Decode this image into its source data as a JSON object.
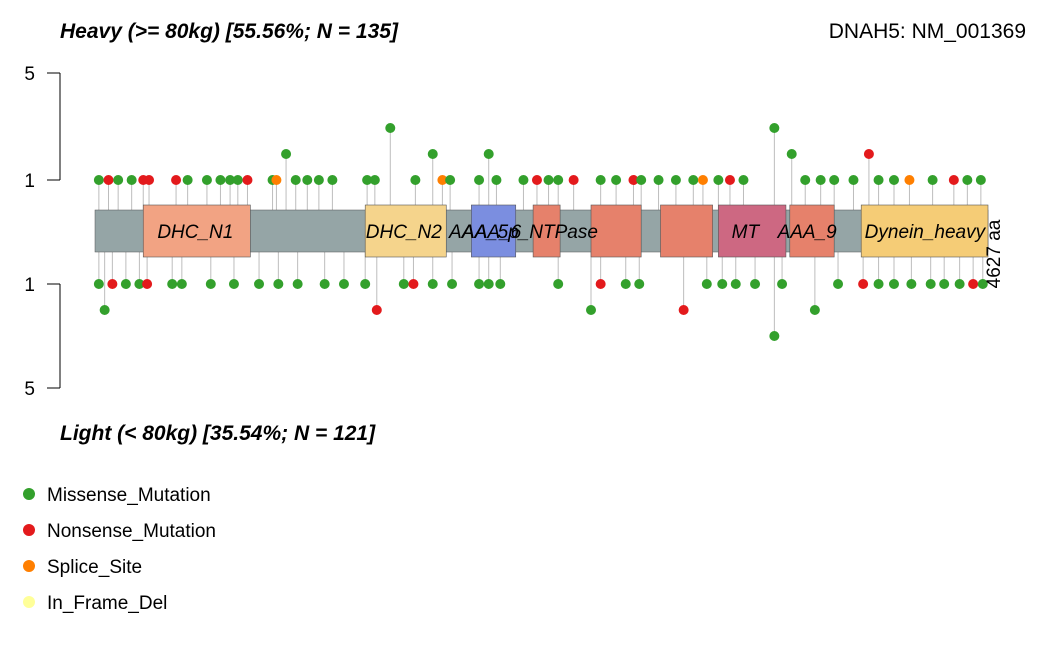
{
  "chart_data": {
    "type": "lollipop",
    "title_top": "Heavy (>= 80kg) [55.56%; N = 135]",
    "title_bottom": "Light (< 80kg) [35.54%; N = 121]",
    "gene_label": "DNAH5: NM_001369",
    "protein_length_label": "4627 aa",
    "protein_length": 4627,
    "y_ticks_top": [
      "5",
      "1"
    ],
    "y_ticks_bottom": [
      "1",
      "5"
    ],
    "colors": {
      "missense": "#33a02c",
      "nonsense": "#e31a1c",
      "splice": "#ff7f00",
      "in_frame_del": "#ffff99",
      "backbone": "#95a5a6",
      "stem": "#bdbdbd"
    },
    "domains": [
      {
        "name": "DHC_N1",
        "start": 250,
        "end": 805,
        "color": "#f2a383"
      },
      {
        "name": "DHC_N2",
        "start": 1400,
        "end": 1820,
        "color": "#f5d48c"
      },
      {
        "name": "AAA_6",
        "start": 1950,
        "end": 2180,
        "color": "#7b8ee0"
      },
      {
        "name": "AAA_5p_NTPase",
        "start": 2270,
        "end": 2410,
        "color": "#e6816b"
      },
      {
        "name": "",
        "start": 2570,
        "end": 2830,
        "color": "#e6816b"
      },
      {
        "name": "",
        "start": 2930,
        "end": 3200,
        "color": "#e6816b"
      },
      {
        "name": "MT",
        "start": 3230,
        "end": 3580,
        "color": "#cd6882"
      },
      {
        "name": "AAA_9",
        "start": 3600,
        "end": 3830,
        "color": "#e6816b"
      },
      {
        "name": "Dynein_heavy",
        "start": 3970,
        "end": 4627,
        "color": "#f5cc76"
      }
    ],
    "domain_labels": [
      {
        "text": "DHC_N1",
        "pos": 520
      },
      {
        "text": "DHC_N2",
        "pos": 1600
      },
      {
        "text": "AAA_6",
        "pos": 2055
      },
      {
        "text": "AAA_5p_NTPase",
        "pos": 2220
      },
      {
        "text": "MT",
        "pos": 3370
      },
      {
        "text": "AAA_9",
        "pos": 3690
      },
      {
        "text": "Dynein_heavy",
        "pos": 4300
      }
    ],
    "top_mutations": [
      {
        "pos": 20,
        "count": 1,
        "type": "missense"
      },
      {
        "pos": 70,
        "count": 1,
        "type": "nonsense"
      },
      {
        "pos": 120,
        "count": 1,
        "type": "missense"
      },
      {
        "pos": 190,
        "count": 1,
        "type": "missense"
      },
      {
        "pos": 250,
        "count": 1,
        "type": "nonsense"
      },
      {
        "pos": 280,
        "count": 1,
        "type": "nonsense"
      },
      {
        "pos": 420,
        "count": 1,
        "type": "nonsense"
      },
      {
        "pos": 480,
        "count": 1,
        "type": "missense"
      },
      {
        "pos": 580,
        "count": 1,
        "type": "missense"
      },
      {
        "pos": 650,
        "count": 1,
        "type": "missense"
      },
      {
        "pos": 700,
        "count": 1,
        "type": "missense"
      },
      {
        "pos": 740,
        "count": 1,
        "type": "missense"
      },
      {
        "pos": 790,
        "count": 1,
        "type": "nonsense"
      },
      {
        "pos": 920,
        "count": 1,
        "type": "missense"
      },
      {
        "pos": 940,
        "count": 1,
        "type": "splice"
      },
      {
        "pos": 990,
        "count": 2,
        "type": "missense"
      },
      {
        "pos": 1040,
        "count": 1,
        "type": "missense"
      },
      {
        "pos": 1100,
        "count": 1,
        "type": "missense"
      },
      {
        "pos": 1160,
        "count": 1,
        "type": "missense"
      },
      {
        "pos": 1230,
        "count": 1,
        "type": "missense"
      },
      {
        "pos": 1410,
        "count": 1,
        "type": "missense"
      },
      {
        "pos": 1450,
        "count": 1,
        "type": "missense"
      },
      {
        "pos": 1530,
        "count": 3,
        "type": "missense"
      },
      {
        "pos": 1660,
        "count": 1,
        "type": "missense"
      },
      {
        "pos": 1750,
        "count": 2,
        "type": "missense"
      },
      {
        "pos": 1800,
        "count": 1,
        "type": "splice"
      },
      {
        "pos": 1840,
        "count": 1,
        "type": "missense"
      },
      {
        "pos": 1990,
        "count": 1,
        "type": "missense"
      },
      {
        "pos": 2040,
        "count": 2,
        "type": "missense"
      },
      {
        "pos": 2080,
        "count": 1,
        "type": "missense"
      },
      {
        "pos": 2220,
        "count": 1,
        "type": "missense"
      },
      {
        "pos": 2290,
        "count": 1,
        "type": "nonsense"
      },
      {
        "pos": 2350,
        "count": 1,
        "type": "missense"
      },
      {
        "pos": 2400,
        "count": 1,
        "type": "missense"
      },
      {
        "pos": 2480,
        "count": 1,
        "type": "nonsense"
      },
      {
        "pos": 2620,
        "count": 1,
        "type": "missense"
      },
      {
        "pos": 2700,
        "count": 1,
        "type": "missense"
      },
      {
        "pos": 2790,
        "count": 1,
        "type": "nonsense"
      },
      {
        "pos": 2830,
        "count": 1,
        "type": "missense"
      },
      {
        "pos": 2920,
        "count": 1,
        "type": "missense"
      },
      {
        "pos": 3010,
        "count": 1,
        "type": "missense"
      },
      {
        "pos": 3100,
        "count": 1,
        "type": "missense"
      },
      {
        "pos": 3150,
        "count": 1,
        "type": "splice"
      },
      {
        "pos": 3230,
        "count": 1,
        "type": "missense"
      },
      {
        "pos": 3290,
        "count": 1,
        "type": "nonsense"
      },
      {
        "pos": 3360,
        "count": 1,
        "type": "missense"
      },
      {
        "pos": 3520,
        "count": 3,
        "type": "missense"
      },
      {
        "pos": 3610,
        "count": 2,
        "type": "missense"
      },
      {
        "pos": 3680,
        "count": 1,
        "type": "missense"
      },
      {
        "pos": 3760,
        "count": 1,
        "type": "missense"
      },
      {
        "pos": 3830,
        "count": 1,
        "type": "missense"
      },
      {
        "pos": 3930,
        "count": 1,
        "type": "missense"
      },
      {
        "pos": 4010,
        "count": 2,
        "type": "nonsense"
      },
      {
        "pos": 4060,
        "count": 1,
        "type": "missense"
      },
      {
        "pos": 4140,
        "count": 1,
        "type": "missense"
      },
      {
        "pos": 4220,
        "count": 1,
        "type": "splice"
      },
      {
        "pos": 4340,
        "count": 1,
        "type": "missense"
      },
      {
        "pos": 4450,
        "count": 1,
        "type": "nonsense"
      },
      {
        "pos": 4520,
        "count": 1,
        "type": "missense"
      },
      {
        "pos": 4590,
        "count": 1,
        "type": "missense"
      }
    ],
    "bottom_mutations": [
      {
        "pos": 20,
        "count": 1,
        "type": "missense"
      },
      {
        "pos": 50,
        "count": 2,
        "type": "missense"
      },
      {
        "pos": 90,
        "count": 1,
        "type": "nonsense"
      },
      {
        "pos": 160,
        "count": 1,
        "type": "missense"
      },
      {
        "pos": 230,
        "count": 1,
        "type": "missense"
      },
      {
        "pos": 270,
        "count": 1,
        "type": "nonsense"
      },
      {
        "pos": 400,
        "count": 1,
        "type": "missense"
      },
      {
        "pos": 450,
        "count": 1,
        "type": "missense"
      },
      {
        "pos": 600,
        "count": 1,
        "type": "missense"
      },
      {
        "pos": 720,
        "count": 1,
        "type": "missense"
      },
      {
        "pos": 850,
        "count": 1,
        "type": "missense"
      },
      {
        "pos": 950,
        "count": 1,
        "type": "missense"
      },
      {
        "pos": 1050,
        "count": 1,
        "type": "missense"
      },
      {
        "pos": 1190,
        "count": 1,
        "type": "missense"
      },
      {
        "pos": 1290,
        "count": 1,
        "type": "missense"
      },
      {
        "pos": 1400,
        "count": 1,
        "type": "missense"
      },
      {
        "pos": 1460,
        "count": 2,
        "type": "nonsense"
      },
      {
        "pos": 1600,
        "count": 1,
        "type": "missense"
      },
      {
        "pos": 1650,
        "count": 1,
        "type": "nonsense"
      },
      {
        "pos": 1750,
        "count": 1,
        "type": "missense"
      },
      {
        "pos": 1850,
        "count": 1,
        "type": "missense"
      },
      {
        "pos": 1990,
        "count": 1,
        "type": "missense"
      },
      {
        "pos": 2040,
        "count": 1,
        "type": "missense"
      },
      {
        "pos": 2100,
        "count": 1,
        "type": "missense"
      },
      {
        "pos": 2400,
        "count": 1,
        "type": "missense"
      },
      {
        "pos": 2570,
        "count": 2,
        "type": "missense"
      },
      {
        "pos": 2620,
        "count": 1,
        "type": "nonsense"
      },
      {
        "pos": 2750,
        "count": 1,
        "type": "missense"
      },
      {
        "pos": 2820,
        "count": 1,
        "type": "missense"
      },
      {
        "pos": 3050,
        "count": 2,
        "type": "nonsense"
      },
      {
        "pos": 3170,
        "count": 1,
        "type": "missense"
      },
      {
        "pos": 3250,
        "count": 1,
        "type": "missense"
      },
      {
        "pos": 3320,
        "count": 1,
        "type": "missense"
      },
      {
        "pos": 3420,
        "count": 1,
        "type": "missense"
      },
      {
        "pos": 3520,
        "count": 3,
        "type": "missense"
      },
      {
        "pos": 3560,
        "count": 1,
        "type": "missense"
      },
      {
        "pos": 3730,
        "count": 2,
        "type": "missense"
      },
      {
        "pos": 3850,
        "count": 1,
        "type": "missense"
      },
      {
        "pos": 3980,
        "count": 1,
        "type": "nonsense"
      },
      {
        "pos": 4060,
        "count": 1,
        "type": "missense"
      },
      {
        "pos": 4140,
        "count": 1,
        "type": "missense"
      },
      {
        "pos": 4230,
        "count": 1,
        "type": "missense"
      },
      {
        "pos": 4330,
        "count": 1,
        "type": "missense"
      },
      {
        "pos": 4400,
        "count": 1,
        "type": "missense"
      },
      {
        "pos": 4480,
        "count": 1,
        "type": "missense"
      },
      {
        "pos": 4550,
        "count": 1,
        "type": "nonsense"
      },
      {
        "pos": 4600,
        "count": 1,
        "type": "missense"
      }
    ],
    "legend": [
      {
        "label": "Missense_Mutation",
        "color": "#33a02c"
      },
      {
        "label": "Nonsense_Mutation",
        "color": "#e31a1c"
      },
      {
        "label": "Splice_Site",
        "color": "#ff7f00"
      },
      {
        "label": "In_Frame_Del",
        "color": "#ffff99"
      }
    ]
  }
}
